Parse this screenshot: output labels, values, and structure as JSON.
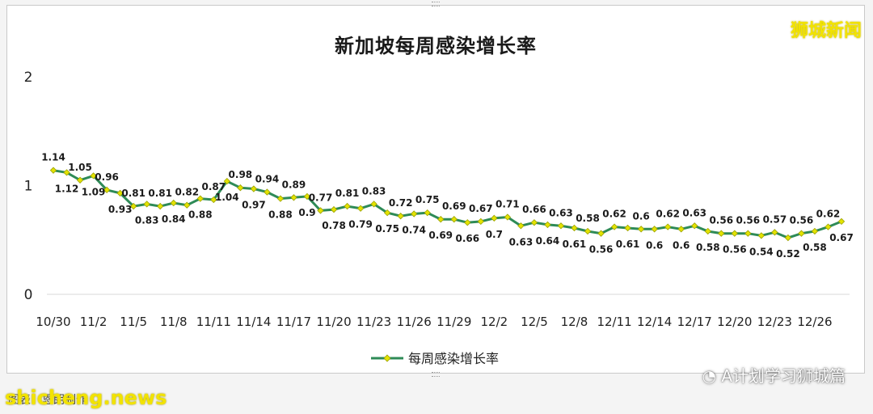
{
  "watermark_top": "狮城新闻",
  "watermark_bottom": "shicheng.news",
  "wechat_mark": "A计划学习狮城篇",
  "caption": "图表：恩朗制作",
  "colors": {
    "line": "#2e8b57",
    "marker": "#e3e300",
    "marker_edge": "#9aa000"
  },
  "chart_data": {
    "type": "line",
    "title": "新加坡每周感染增长率",
    "xlabel": "",
    "ylabel": "",
    "ylim": [
      0,
      2
    ],
    "yticks": [
      "0",
      "1",
      "2"
    ],
    "grid": false,
    "legend_position": "bottom",
    "x": [
      "10/30",
      "10/31",
      "11/1",
      "11/2",
      "11/3",
      "11/4",
      "11/5",
      "11/6",
      "11/7",
      "11/8",
      "11/9",
      "11/10",
      "11/11",
      "11/12",
      "11/13",
      "11/14",
      "11/15",
      "11/16",
      "11/17",
      "11/18",
      "11/19",
      "11/20",
      "11/21",
      "11/22",
      "11/23",
      "11/24",
      "11/25",
      "11/26",
      "11/27",
      "11/28",
      "11/29",
      "11/30",
      "12/1",
      "12/2",
      "12/3",
      "12/4",
      "12/5",
      "12/6",
      "12/7",
      "12/8",
      "12/9",
      "12/10",
      "12/11",
      "12/12",
      "12/13",
      "12/14",
      "12/15",
      "12/16",
      "12/17",
      "12/18",
      "12/19",
      "12/20",
      "12/21",
      "12/22",
      "12/23",
      "12/24",
      "12/25",
      "12/26",
      "12/27",
      "12/28"
    ],
    "xtick_labels": [
      "10/30",
      "11/2",
      "11/5",
      "11/8",
      "11/11",
      "11/14",
      "11/17",
      "11/20",
      "11/23",
      "11/26",
      "11/29",
      "12/2",
      "12/5",
      "12/8",
      "12/11",
      "12/14",
      "12/17",
      "12/20",
      "12/23",
      "12/26"
    ],
    "series": [
      {
        "name": "每周感染增长率",
        "values": [
          1.14,
          1.12,
          1.05,
          1.09,
          0.96,
          0.93,
          0.81,
          0.83,
          0.81,
          0.84,
          0.82,
          0.88,
          0.87,
          1.04,
          0.98,
          0.97,
          0.94,
          0.88,
          0.89,
          0.9,
          0.77,
          0.78,
          0.81,
          0.79,
          0.83,
          0.75,
          0.72,
          0.74,
          0.75,
          0.69,
          0.69,
          0.66,
          0.67,
          0.7,
          0.71,
          0.63,
          0.66,
          0.64,
          0.63,
          0.61,
          0.58,
          0.56,
          0.62,
          0.61,
          0.6,
          0.6,
          0.62,
          0.6,
          0.63,
          0.58,
          0.56,
          0.56,
          0.56,
          0.54,
          0.57,
          0.52,
          0.56,
          0.58,
          0.62,
          0.67
        ],
        "data_labels": [
          "1.14",
          "1.12",
          "1.05",
          "1.09",
          "0.96",
          "0.93",
          "0.81",
          "0.83",
          "0.81",
          "0.84",
          "0.82",
          "0.88",
          "0.87",
          "1.04",
          "0.98",
          "0.97",
          "0.94",
          "0.88",
          "0.89",
          "0.9",
          "0.77",
          "0.78",
          "0.81",
          "0.79",
          "0.83",
          "0.75",
          "0.72",
          "0.74",
          "0.75",
          "0.69",
          "0.69",
          "0.66",
          "0.67",
          "0.7",
          "0.71",
          "0.63",
          "0.66",
          "0.64",
          "0.63",
          "0.61",
          "0.58",
          "0.56",
          "0.62",
          "0.61",
          "0.6",
          "0.6",
          "0.62",
          "0.6",
          "0.63",
          "0.58",
          "0.56",
          "0.56",
          "0.56",
          "0.54",
          "0.57",
          "0.52",
          "0.56",
          "0.58",
          "0.62",
          "0.67"
        ]
      }
    ]
  }
}
